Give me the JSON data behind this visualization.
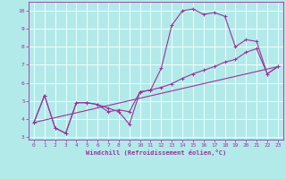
{
  "xlabel": "Windchill (Refroidissement éolien,°C)",
  "bg_color": "#b2eaea",
  "grid_color": "#ffffff",
  "line_color": "#993399",
  "xlim": [
    -0.5,
    23.5
  ],
  "ylim": [
    2.85,
    10.5
  ],
  "xticks": [
    0,
    1,
    2,
    3,
    4,
    5,
    6,
    7,
    8,
    9,
    10,
    11,
    12,
    13,
    14,
    15,
    16,
    17,
    18,
    19,
    20,
    21,
    22,
    23
  ],
  "yticks": [
    3,
    4,
    5,
    6,
    7,
    8,
    9,
    10
  ],
  "curve1_x": [
    0,
    1,
    2,
    3,
    4,
    5,
    6,
    7,
    8,
    9,
    10,
    11,
    12,
    13,
    14,
    15,
    16,
    17,
    18,
    19,
    20,
    21,
    22,
    23
  ],
  "curve1_y": [
    3.8,
    5.3,
    3.5,
    3.2,
    4.9,
    4.9,
    4.8,
    4.6,
    4.4,
    3.7,
    5.5,
    5.6,
    6.8,
    9.2,
    10.0,
    10.1,
    9.8,
    9.9,
    9.7,
    8.0,
    8.4,
    8.3,
    6.5,
    6.9
  ],
  "curve2_x": [
    0,
    1,
    2,
    3,
    4,
    5,
    6,
    7,
    8,
    9,
    10,
    11,
    12,
    13,
    14,
    15,
    16,
    17,
    18,
    19,
    20,
    21,
    22,
    23
  ],
  "curve2_y": [
    3.8,
    5.3,
    3.5,
    3.2,
    4.9,
    4.9,
    4.8,
    4.4,
    4.5,
    4.4,
    5.5,
    5.6,
    5.75,
    5.95,
    6.25,
    6.5,
    6.7,
    6.9,
    7.15,
    7.3,
    7.7,
    7.9,
    6.5,
    6.9
  ],
  "curve3_x": [
    0,
    23
  ],
  "curve3_y": [
    3.8,
    6.9
  ]
}
